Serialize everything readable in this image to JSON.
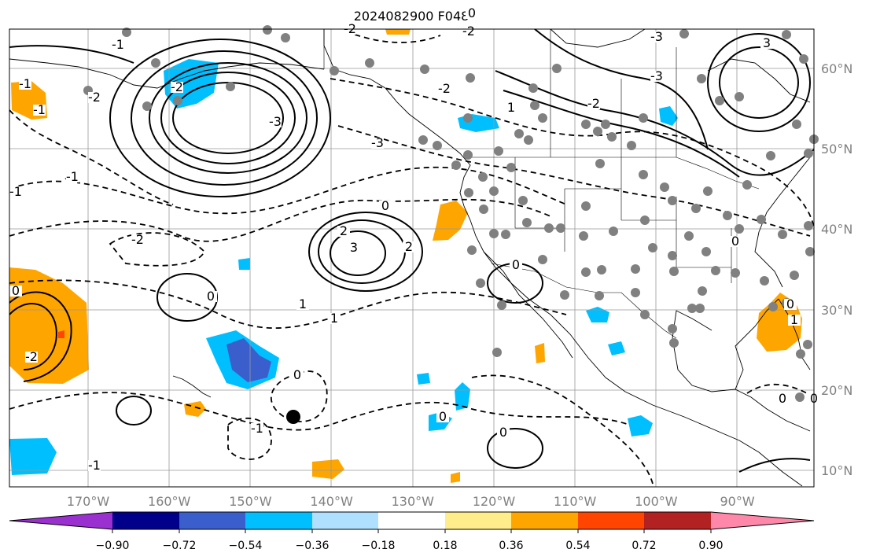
{
  "title": "2024082900 F048",
  "lon_labels": [
    "170°W",
    "160°W",
    "150°W",
    "140°W",
    "130°W",
    "120°W",
    "110°W",
    "100°W",
    "90°W"
  ],
  "lat_labels": [
    "60°N",
    "50°N",
    "40°N",
    "30°N",
    "20°N",
    "10°N"
  ],
  "contour_labels": [
    "-2",
    "-2",
    "-1",
    "-3",
    "-2",
    "-1",
    "-2",
    "-3",
    "-3",
    "-2",
    "1",
    "-2",
    "3",
    "-1",
    "-3",
    "-2",
    "0",
    "-2",
    "0",
    "2",
    "3",
    "2",
    "0",
    "-2",
    "-1",
    "0",
    "0",
    "1",
    "-1",
    "0",
    "0",
    "1",
    "0",
    "0",
    "0",
    "1",
    "0",
    "0",
    "-1",
    "-1"
  ],
  "colorbar": {
    "tick_labels": [
      "−0.90",
      "−0.72",
      "−0.54",
      "−0.36",
      "−0.18",
      "0.18",
      "0.36",
      "0.54",
      "0.72",
      "0.90"
    ],
    "colors": [
      "#9b30d0",
      "#00008b",
      "#3a5fcd",
      "#00bfff",
      "#b0e0ff",
      "#ffffff",
      "#ffec8b",
      "#ffa500",
      "#ff4500",
      "#b22222",
      "#ff88aa"
    ]
  },
  "colors": {
    "land_line": "#000000",
    "grid": "#999999",
    "station_dot": "#808080",
    "storm_marker": "#000000"
  }
}
